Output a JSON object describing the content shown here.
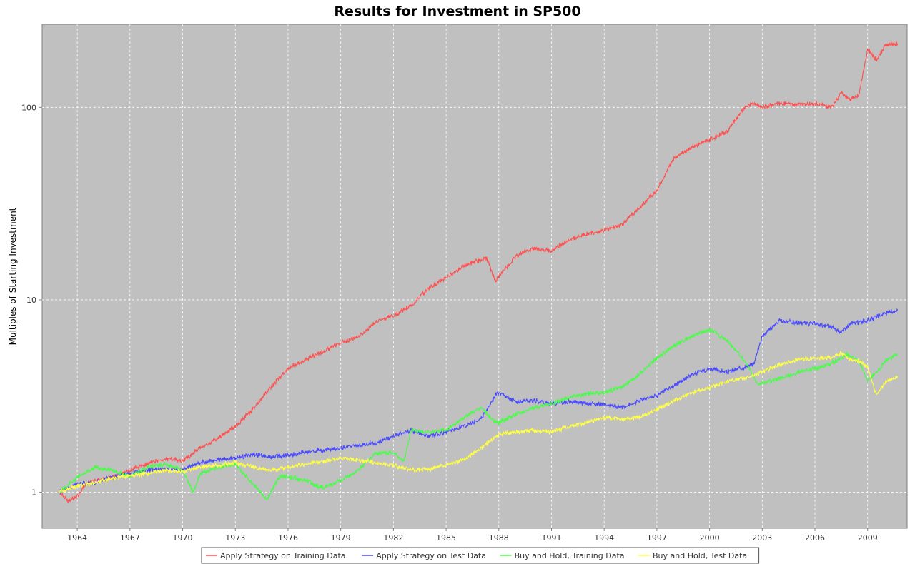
{
  "chart_data": {
    "type": "line",
    "title": "Results for Investment in SP500",
    "ylabel": "Multiples of Starting Investment",
    "xlabel": "",
    "y_scale": "log",
    "ylim": [
      0.65,
      270
    ],
    "xlim": [
      1962.0,
      2011.25
    ],
    "x_ticks": [
      1964,
      1967,
      1970,
      1973,
      1976,
      1979,
      1982,
      1985,
      1988,
      1991,
      1994,
      1997,
      2000,
      2003,
      2006,
      2009
    ],
    "y_ticks": [
      1,
      10,
      100
    ],
    "y_tick_labels": [
      "1",
      "10",
      "100"
    ],
    "grid": true,
    "legend_position": "bottom",
    "series": [
      {
        "name": "Apply Strategy on Training Data",
        "color": "#ff5050",
        "x": [
          1963.0,
          1963.5,
          1964.0,
          1964.5,
          1965.0,
          1966.0,
          1967.0,
          1968.0,
          1969.0,
          1970.0,
          1971.0,
          1972.0,
          1973.0,
          1974.0,
          1975.0,
          1976.0,
          1977.0,
          1978.0,
          1979.0,
          1980.0,
          1981.0,
          1982.0,
          1983.0,
          1984.0,
          1985.0,
          1986.0,
          1987.3,
          1987.8,
          1988.5,
          1989.0,
          1990.0,
          1991.0,
          1992.0,
          1993.0,
          1994.0,
          1995.0,
          1996.0,
          1997.0,
          1998.0,
          1999.0,
          2000.0,
          2001.0,
          2002.0,
          2002.5,
          2003.0,
          2004.0,
          2005.0,
          2006.0,
          2007.0,
          2007.5,
          2008.0,
          2008.5,
          2009.0,
          2009.5,
          2010.0,
          2010.7
        ],
        "y": [
          1.0,
          0.9,
          0.95,
          1.1,
          1.15,
          1.2,
          1.3,
          1.4,
          1.5,
          1.45,
          1.7,
          1.9,
          2.2,
          2.7,
          3.5,
          4.4,
          4.9,
          5.4,
          6.0,
          6.4,
          7.7,
          8.3,
          9.3,
          11.5,
          13.0,
          15.0,
          16.5,
          12.5,
          15.0,
          17.0,
          18.5,
          18.0,
          20.5,
          22.0,
          23.0,
          24.5,
          30.0,
          37.0,
          55.0,
          62.0,
          68.0,
          75.0,
          100.0,
          105.0,
          100.0,
          105.0,
          103.0,
          105.0,
          100.0,
          120.0,
          110.0,
          115.0,
          200.0,
          175.0,
          210.0,
          215.0
        ]
      },
      {
        "name": "Apply Strategy on Test Data",
        "color": "#4a4aff",
        "x": [
          1963.0,
          1964.0,
          1965.0,
          1966.0,
          1967.0,
          1968.0,
          1969.0,
          1970.0,
          1971.0,
          1972.0,
          1973.0,
          1974.0,
          1975.0,
          1976.0,
          1977.0,
          1978.0,
          1979.0,
          1980.0,
          1981.0,
          1982.0,
          1983.0,
          1984.0,
          1985.0,
          1986.0,
          1987.0,
          1987.9,
          1988.5,
          1989.0,
          1990.0,
          1991.0,
          1992.0,
          1993.0,
          1994.0,
          1995.0,
          1996.0,
          1997.0,
          1998.0,
          1999.0,
          2000.0,
          2001.0,
          2002.0,
          2002.5,
          2003.0,
          2004.0,
          2005.0,
          2006.0,
          2007.0,
          2007.5,
          2008.0,
          2009.0,
          2010.0,
          2010.7
        ],
        "y": [
          1.0,
          1.1,
          1.12,
          1.2,
          1.25,
          1.3,
          1.32,
          1.3,
          1.42,
          1.48,
          1.5,
          1.58,
          1.52,
          1.55,
          1.62,
          1.65,
          1.7,
          1.75,
          1.8,
          1.95,
          2.1,
          1.95,
          2.05,
          2.2,
          2.4,
          3.3,
          3.1,
          2.95,
          3.0,
          2.9,
          2.95,
          2.9,
          2.85,
          2.75,
          3.0,
          3.2,
          3.6,
          4.1,
          4.4,
          4.2,
          4.5,
          4.6,
          6.5,
          7.8,
          7.6,
          7.5,
          7.2,
          6.8,
          7.5,
          7.8,
          8.5,
          8.8
        ]
      },
      {
        "name": "Buy and Hold, Training Data",
        "color": "#44ff44",
        "x": [
          1963.0,
          1964.0,
          1965.0,
          1966.0,
          1967.0,
          1968.0,
          1969.0,
          1970.0,
          1970.6,
          1971.0,
          1972.0,
          1973.0,
          1974.0,
          1974.8,
          1975.5,
          1976.0,
          1977.0,
          1978.0,
          1979.0,
          1980.0,
          1981.0,
          1982.0,
          1982.6,
          1983.0,
          1984.0,
          1985.0,
          1986.0,
          1987.0,
          1987.8,
          1988.0,
          1989.0,
          1990.0,
          1991.0,
          1992.0,
          1993.0,
          1994.0,
          1995.0,
          1996.0,
          1997.0,
          1998.0,
          1999.0,
          2000.0,
          2001.0,
          2002.0,
          2002.8,
          2003.0,
          2004.0,
          2005.0,
          2006.0,
          2007.0,
          2007.8,
          2008.5,
          2009.0,
          2009.5,
          2010.0,
          2010.7
        ],
        "y": [
          1.0,
          1.2,
          1.35,
          1.3,
          1.2,
          1.35,
          1.4,
          1.3,
          1.0,
          1.25,
          1.35,
          1.4,
          1.1,
          0.92,
          1.2,
          1.2,
          1.15,
          1.05,
          1.15,
          1.3,
          1.6,
          1.6,
          1.45,
          2.1,
          2.05,
          2.1,
          2.45,
          2.75,
          2.3,
          2.3,
          2.55,
          2.75,
          2.9,
          3.1,
          3.25,
          3.3,
          3.5,
          4.1,
          5.0,
          5.8,
          6.5,
          7.0,
          6.2,
          4.8,
          3.6,
          3.7,
          3.9,
          4.2,
          4.4,
          4.7,
          5.2,
          4.8,
          3.8,
          4.2,
          4.8,
          5.2
        ]
      },
      {
        "name": "Buy and Hold, Test Data",
        "color": "#ffff44",
        "x": [
          1963.0,
          1964.0,
          1965.0,
          1966.0,
          1967.0,
          1968.0,
          1969.0,
          1970.0,
          1971.0,
          1972.0,
          1973.0,
          1974.0,
          1975.0,
          1976.0,
          1977.0,
          1978.0,
          1979.0,
          1980.0,
          1981.0,
          1982.0,
          1983.0,
          1984.0,
          1985.0,
          1986.0,
          1987.0,
          1988.0,
          1989.0,
          1990.0,
          1991.0,
          1992.0,
          1993.0,
          1994.0,
          1995.0,
          1996.0,
          1997.0,
          1998.0,
          1999.0,
          2000.0,
          2001.0,
          2002.0,
          2003.0,
          2004.0,
          2005.0,
          2006.0,
          2007.0,
          2007.5,
          2008.0,
          2008.5,
          2009.0,
          2009.5,
          2010.0,
          2010.7
        ],
        "y": [
          1.0,
          1.08,
          1.12,
          1.18,
          1.22,
          1.25,
          1.3,
          1.28,
          1.35,
          1.38,
          1.42,
          1.35,
          1.3,
          1.35,
          1.4,
          1.45,
          1.5,
          1.48,
          1.42,
          1.38,
          1.3,
          1.32,
          1.38,
          1.48,
          1.7,
          2.0,
          2.05,
          2.1,
          2.05,
          2.2,
          2.3,
          2.45,
          2.4,
          2.45,
          2.7,
          3.0,
          3.3,
          3.5,
          3.8,
          3.9,
          4.2,
          4.6,
          4.9,
          5.0,
          5.0,
          5.3,
          4.9,
          4.8,
          4.5,
          3.2,
          3.7,
          4.0
        ]
      }
    ]
  }
}
